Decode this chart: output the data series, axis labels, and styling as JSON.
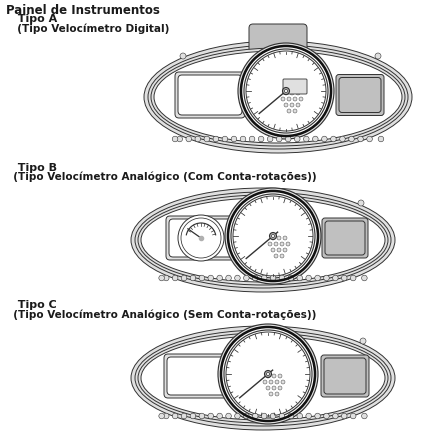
{
  "title": "Painel de Instrumentos",
  "tipo_a_label": "  Tipo A",
  "tipo_a_sub": "  (Tipo Velocímetro Digital)",
  "tipo_b_label": "  Tipo B",
  "tipo_b_sub": "  (Tipo Velocímetro Analógico (Com Conta-rotações))",
  "tipo_c_label": "  Tipo C",
  "tipo_c_sub": "  (Tipo Velocímetro Analógico (Sem Conta-rotações))",
  "bg_color": "#ffffff",
  "text_color": "#1a1a1a",
  "outline_color": "#333333",
  "gray_fill": "#c0c0c0",
  "light_gray": "#e0e0e0",
  "mid_gray": "#b0b0b0",
  "dark_outline": "#111111"
}
